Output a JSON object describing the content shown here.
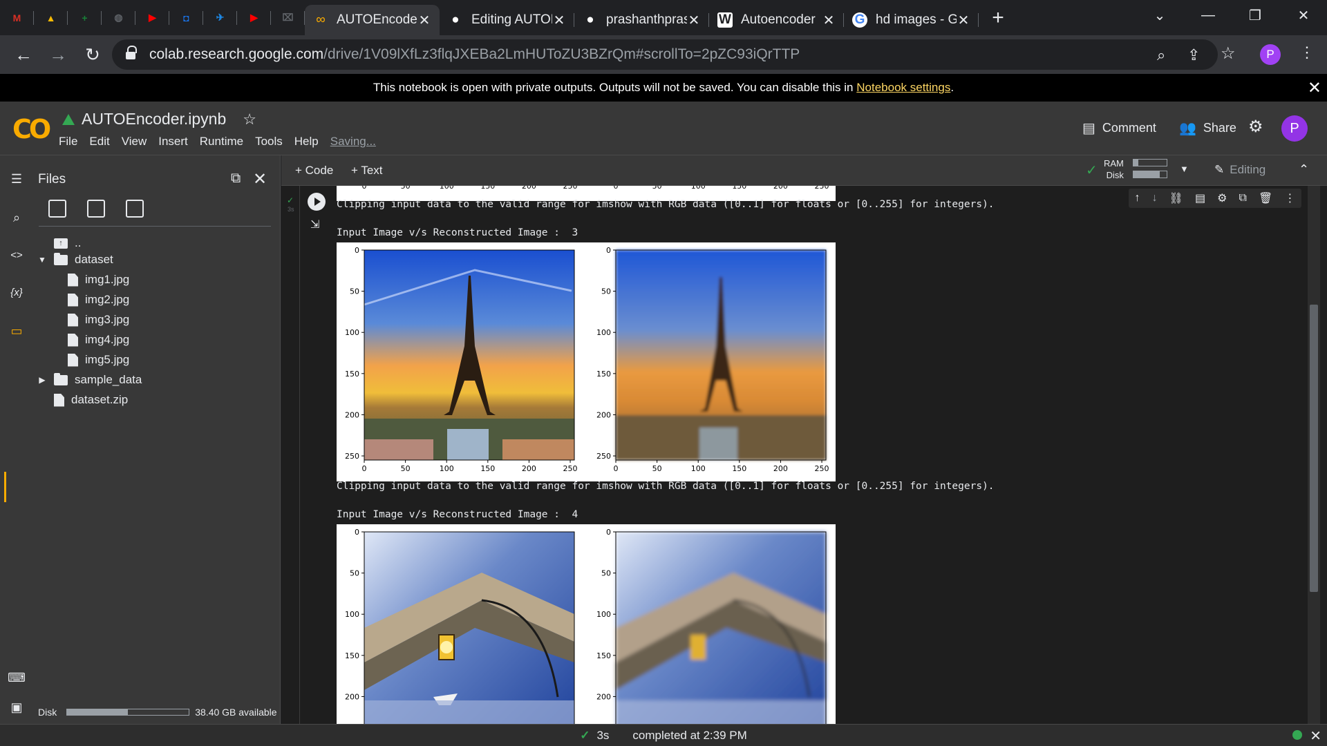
{
  "browser": {
    "pinned_tabs": [
      {
        "icon": "gmail-icon",
        "glyph": "M",
        "color": "#d93025"
      },
      {
        "icon": "google-drive-icon",
        "glyph": "▲",
        "color": "#fbbc04"
      },
      {
        "icon": "google-sheets-icon",
        "glyph": "+",
        "color": "#188038"
      },
      {
        "icon": "globe-icon",
        "glyph": "◍",
        "color": "#5f6368"
      },
      {
        "icon": "youtube-icon",
        "glyph": "▶",
        "color": "#ff0000"
      },
      {
        "icon": "bookmark-app-icon",
        "glyph": "◘",
        "color": "#1a73e8"
      },
      {
        "icon": "compass-icon",
        "glyph": "✈",
        "color": "#1e88e5"
      },
      {
        "icon": "youtube-icon-2",
        "glyph": "▶",
        "color": "#ff0000"
      },
      {
        "icon": "app-icon",
        "glyph": "⌧",
        "color": "#5f6368"
      }
    ],
    "tabs": [
      {
        "title": "AUTOEncoder.ipynb",
        "icon": "colab-icon",
        "active": true
      },
      {
        "title": "Editing AUTOEncoder",
        "icon": "github-icon",
        "active": false
      },
      {
        "title": "prashanthprasad",
        "icon": "github-icon",
        "active": false
      },
      {
        "title": "Autoencoder",
        "icon": "wikipedia-icon",
        "active": false
      },
      {
        "title": "hd images - Google",
        "icon": "google-icon",
        "active": false
      }
    ],
    "url_host": "colab.research.google.com",
    "url_path": "/drive/1V09lXfLz3flqJXEBa2LmHUToZU3BZrQm#scrollTo=2pZC93iQrTTP",
    "profile_letter": "P"
  },
  "infobar": {
    "text": "This notebook is open with private outputs. Outputs will not be saved. You can disable this in ",
    "link": "Notebook settings",
    "suffix": "."
  },
  "colab": {
    "title": "AUTOEncoder.ipynb",
    "menu": [
      "File",
      "Edit",
      "View",
      "Insert",
      "Runtime",
      "Tools",
      "Help"
    ],
    "saving": "Saving...",
    "comment": "Comment",
    "share": "Share",
    "avatar": "P"
  },
  "files_panel": {
    "title": "Files",
    "parent": "..",
    "tree": [
      {
        "name": "dataset",
        "type": "folder",
        "expanded": true,
        "level": 0
      },
      {
        "name": "img1.jpg",
        "type": "file",
        "level": 1
      },
      {
        "name": "img2.jpg",
        "type": "file",
        "level": 1
      },
      {
        "name": "img3.jpg",
        "type": "file",
        "level": 1
      },
      {
        "name": "img4.jpg",
        "type": "file",
        "level": 1
      },
      {
        "name": "img5.jpg",
        "type": "file",
        "level": 1
      },
      {
        "name": "sample_data",
        "type": "folder",
        "expanded": false,
        "level": 0
      },
      {
        "name": "dataset.zip",
        "type": "file",
        "level": 0
      }
    ],
    "disk_label": "Disk",
    "disk_available": "38.40 GB available",
    "disk_used_fraction": 0.5
  },
  "toolbar": {
    "code": "+ Code",
    "text": "+ Text",
    "ram": "RAM",
    "disk": "Disk",
    "ram_fraction": 0.15,
    "disk_fraction": 0.8,
    "editing": "Editing"
  },
  "cell": {
    "duration_small": "3s",
    "warning": "Clipping input data to the valid range for imshow with RGB data ([0..1] for floats or [0..255] for integers).",
    "heading_3": "Input Image v/s Reconstructed Image :  3",
    "heading_4": "Input Image v/s Reconstructed Image :  4",
    "x_ticks": [
      "0",
      "50",
      "100",
      "150",
      "200",
      "250"
    ],
    "y_ticks": [
      "0",
      "50",
      "100",
      "150",
      "200",
      "250"
    ],
    "y_ticks_partial": [
      "0",
      "50",
      "100",
      "150",
      "200"
    ]
  },
  "status": {
    "duration": "3s",
    "text": "completed at 2:39 PM"
  }
}
